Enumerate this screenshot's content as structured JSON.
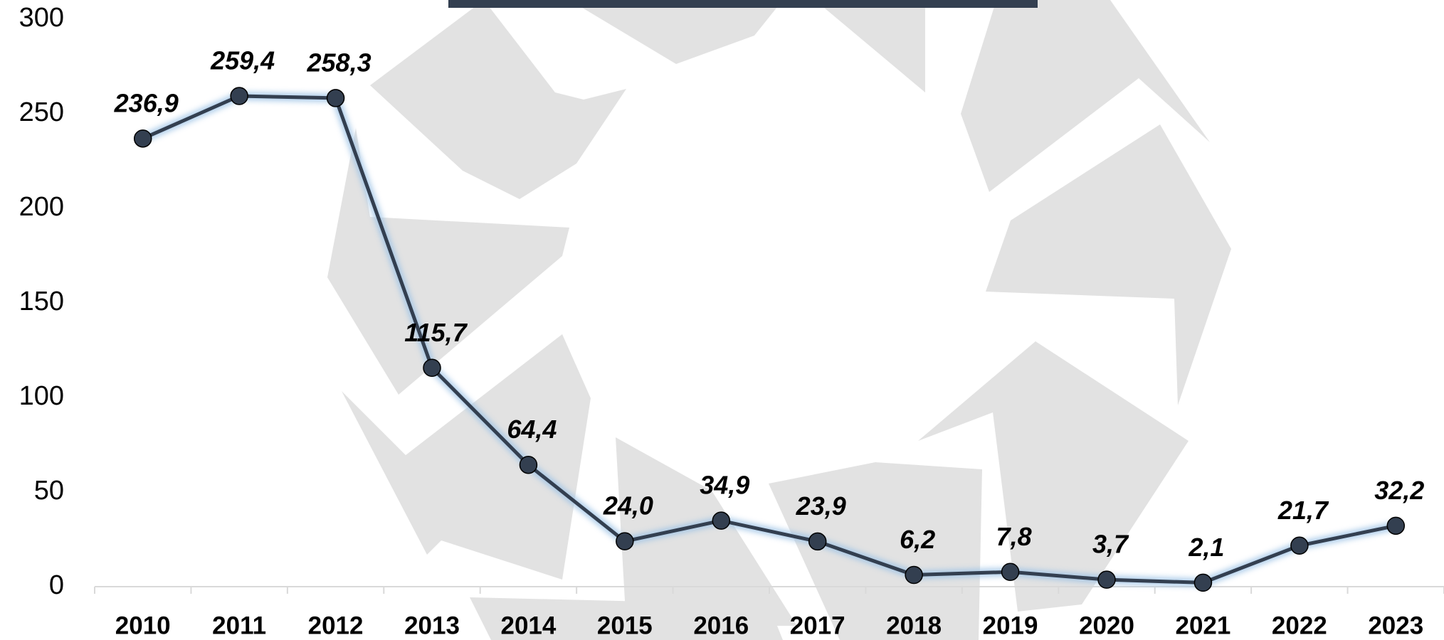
{
  "chart_data": {
    "type": "line",
    "categories": [
      "2010",
      "2011",
      "2012",
      "2013",
      "2014",
      "2015",
      "2016",
      "2017",
      "2018",
      "2019",
      "2020",
      "2021",
      "2022",
      "2023"
    ],
    "values": [
      236.9,
      259.4,
      258.3,
      115.7,
      64.4,
      24.0,
      34.9,
      23.9,
      6.2,
      7.8,
      3.7,
      2.1,
      21.7,
      32.2
    ],
    "value_labels": [
      "236,9",
      "259,4",
      "258,3",
      "115,7",
      "64,4",
      "24,0",
      "34,9",
      "23,9",
      "6,2",
      "7,8",
      "3,7",
      "2,1",
      "21,7",
      "32,2"
    ],
    "color": "#333f50",
    "ylim": [
      0,
      300
    ],
    "yticks": [
      0,
      50,
      100,
      150,
      200,
      250,
      300
    ],
    "grid": false
  }
}
